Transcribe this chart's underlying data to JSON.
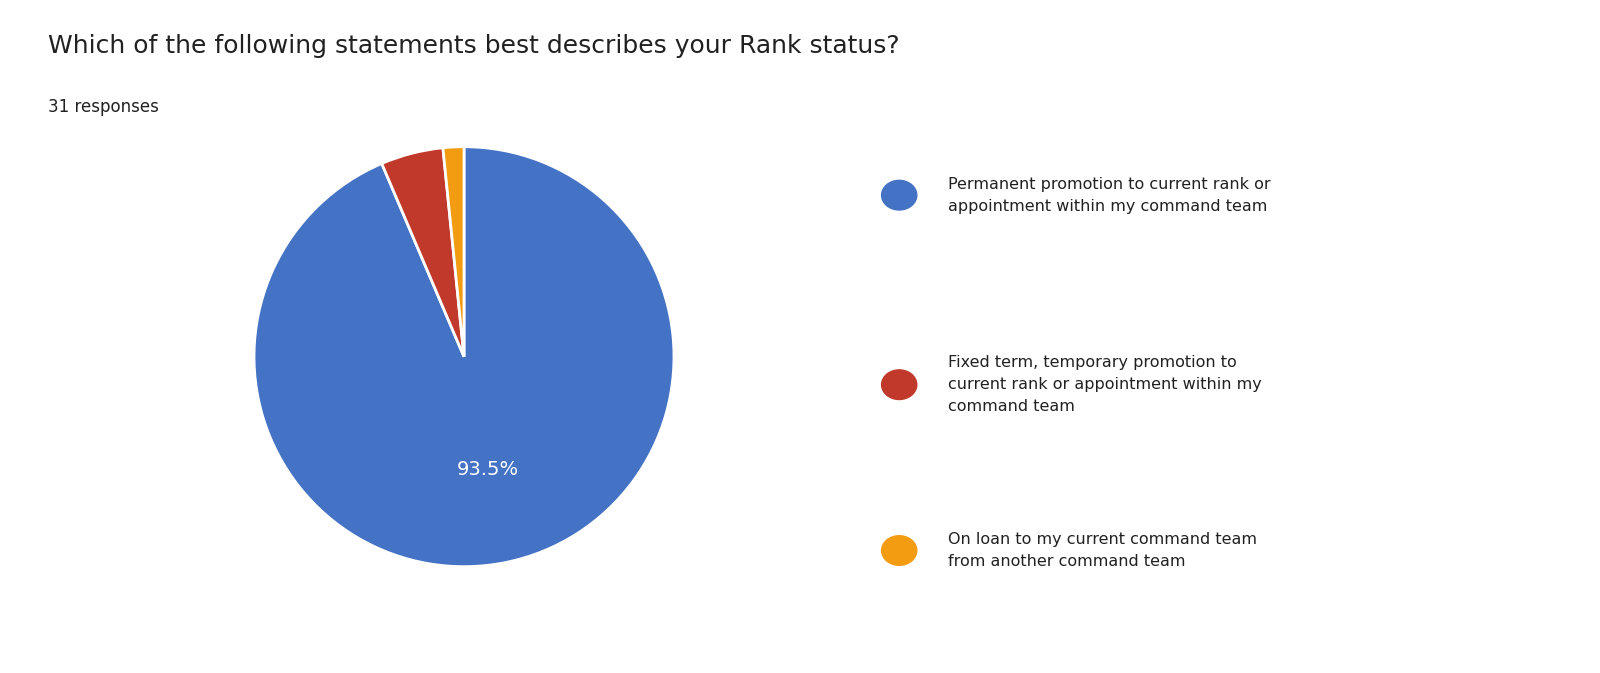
{
  "title": "Which of the following statements best describes your Rank status?",
  "subtitle": "31 responses",
  "slices": [
    93.5,
    4.8,
    1.6
  ],
  "colors": [
    "#4472C4",
    "#C0392B",
    "#F39C12"
  ],
  "legend_labels": [
    "Permanent promotion to current rank or\nappointment within my command team",
    "Fixed term, temporary promotion to\ncurrent rank or appointment within my\ncommand team",
    "On loan to my current command team\nfrom another command team"
  ],
  "legend_colors": [
    "#4472C4",
    "#C0392B",
    "#F39C12"
  ],
  "background_color": "#ffffff",
  "title_fontsize": 18,
  "subtitle_fontsize": 12,
  "text_color": "#212121",
  "pct_label_color": "#ffffff",
  "pct_label_fontsize": 14
}
